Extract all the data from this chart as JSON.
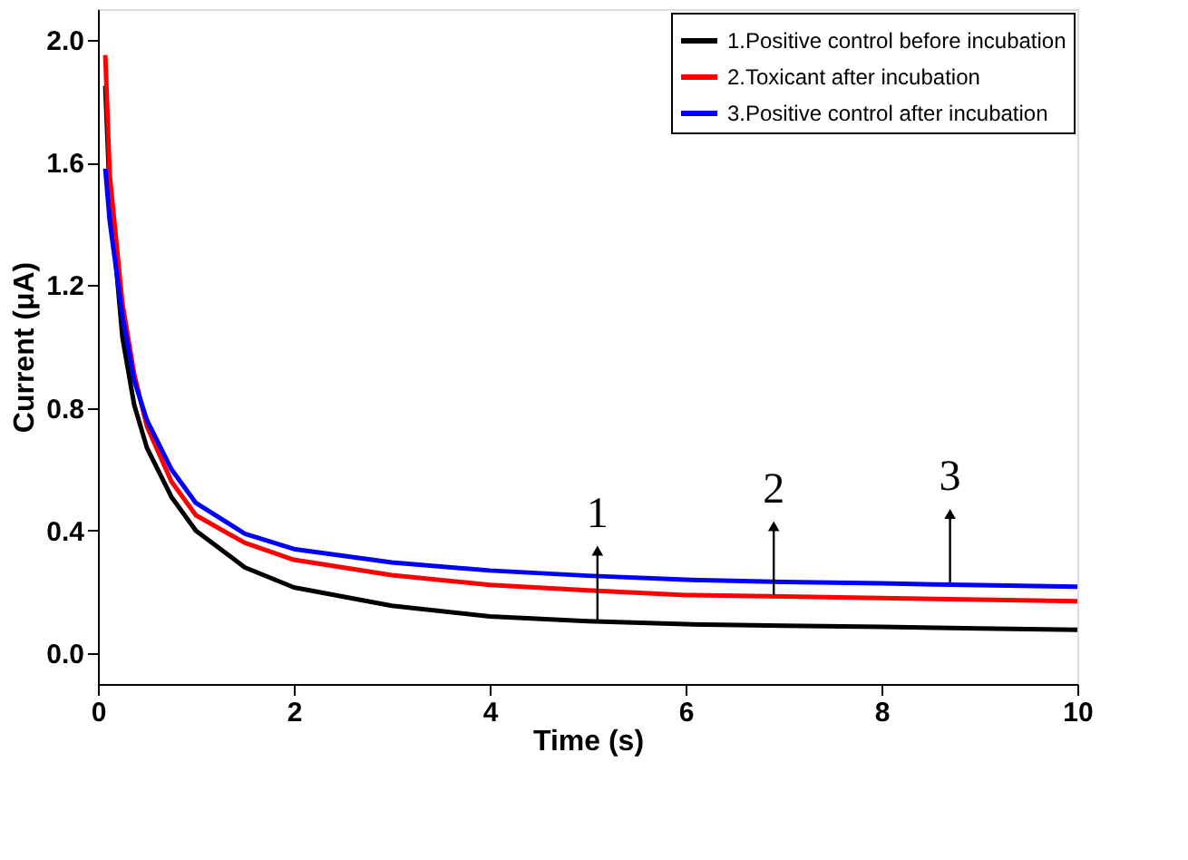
{
  "chart_data": {
    "type": "line",
    "xlabel": "Time (s)",
    "ylabel": "Current (μA)",
    "x": [
      0.075,
      0.12,
      0.25,
      0.37,
      0.5,
      0.75,
      1,
      1.5,
      2,
      3,
      4,
      5,
      6,
      7,
      8,
      9,
      10
    ],
    "series": [
      {
        "name": "1.Positive control before incubation",
        "color": "#000000",
        "values": [
          1.85,
          1.5,
          1.03,
          0.81,
          0.67,
          0.51,
          0.4,
          0.28,
          0.215,
          0.155,
          0.12,
          0.105,
          0.095,
          0.09,
          0.086,
          0.081,
          0.077
        ]
      },
      {
        "name": "2.Toxicant after incubation",
        "color": "#ff0000",
        "values": [
          1.95,
          1.56,
          1.14,
          0.91,
          0.74,
          0.56,
          0.45,
          0.36,
          0.305,
          0.255,
          0.223,
          0.205,
          0.19,
          0.185,
          0.18,
          0.175,
          0.17
        ]
      },
      {
        "name": "3.Positive control after incubation",
        "color": "#0000ff",
        "values": [
          1.58,
          1.41,
          1.1,
          0.89,
          0.76,
          0.6,
          0.49,
          0.39,
          0.34,
          0.296,
          0.27,
          0.253,
          0.24,
          0.233,
          0.228,
          0.222,
          0.217
        ]
      }
    ],
    "annotations": [
      {
        "text": "1",
        "x": 5.1,
        "y": 0.11
      },
      {
        "text": "2",
        "x": 6.9,
        "y": 0.19
      },
      {
        "text": "3",
        "x": 8.7,
        "y": 0.23
      }
    ],
    "xlim": [
      0,
      10
    ],
    "xticks": [
      0,
      2,
      4,
      6,
      8,
      10
    ],
    "ylim": [
      -0.1,
      2.1
    ],
    "yticks": [
      {
        "value": 0,
        "label": "0.0"
      },
      0.4,
      0.8,
      1.2,
      1.6,
      {
        "value": 2,
        "label": "2.0"
      }
    ],
    "grid": false,
    "legend": "top right",
    "marker": "none",
    "line_style": "solid"
  }
}
